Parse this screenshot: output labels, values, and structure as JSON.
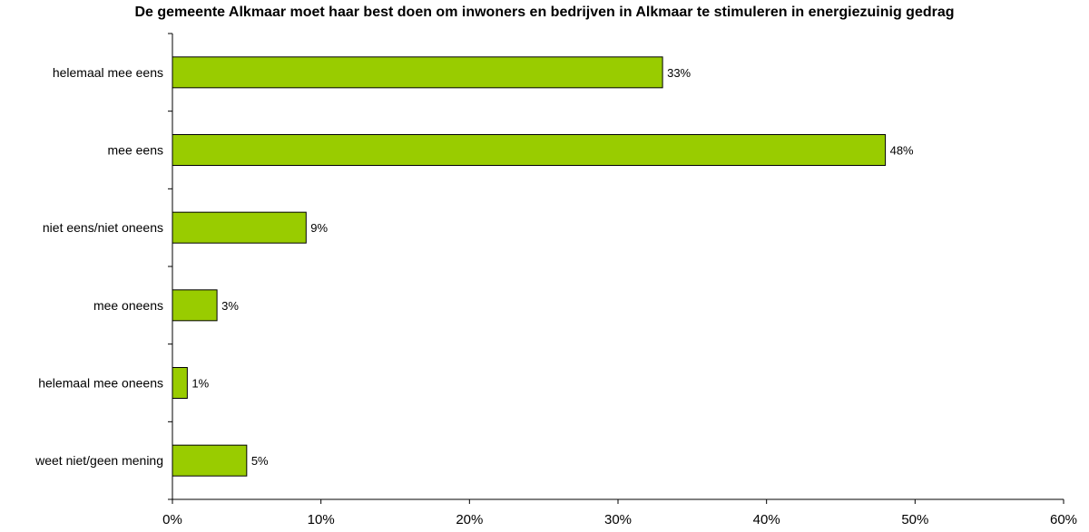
{
  "chart_data": {
    "type": "bar",
    "orientation": "horizontal",
    "title": "De gemeente Alkmaar moet haar best doen om inwoners en bedrijven in Alkmaar te stimuleren in energiezuinig gedrag",
    "categories": [
      "helemaal mee eens",
      "mee eens",
      "niet eens/niet oneens",
      "mee oneens",
      "helemaal mee oneens",
      "weet niet/geen mening"
    ],
    "values": [
      33,
      48,
      9,
      3,
      1,
      5
    ],
    "data_labels": [
      "33%",
      "48%",
      "9%",
      "3%",
      "1%",
      "5%"
    ],
    "xlim": [
      0,
      60
    ],
    "x_ticks": [
      0,
      10,
      20,
      30,
      40,
      50,
      60
    ],
    "x_tick_labels": [
      "0%",
      "10%",
      "20%",
      "30%",
      "40%",
      "50%",
      "60%"
    ],
    "bar_color": "#99CC00",
    "grid": false,
    "legend": "none"
  }
}
